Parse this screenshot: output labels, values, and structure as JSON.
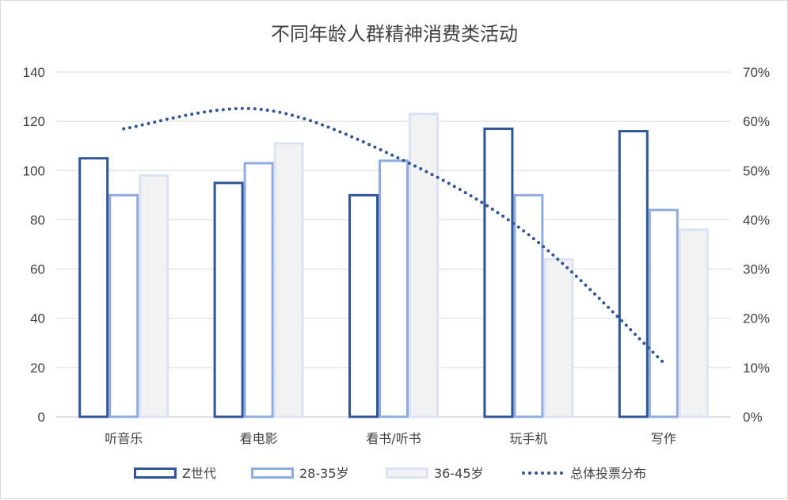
{
  "chart_data": {
    "type": "bar",
    "title": "不同年龄人群精神消费类活动",
    "categories": [
      "听音乐",
      "看电影",
      "看书/听书",
      "玩手机",
      "写作"
    ],
    "series": [
      {
        "name": "Z世代",
        "kind": "bar",
        "axis": "left",
        "color": "#2f5597",
        "fill": "#ffffff",
        "values": [
          105,
          95,
          90,
          117,
          116
        ]
      },
      {
        "name": "28-35岁",
        "kind": "bar",
        "axis": "left",
        "color": "#8faadc",
        "fill": "#ffffff",
        "values": [
          90,
          103,
          104,
          90,
          84
        ]
      },
      {
        "name": "36-45岁",
        "kind": "bar",
        "axis": "left",
        "color": "#dae3f3",
        "fill": "#f2f2f2",
        "values": [
          98,
          111,
          123,
          64,
          76
        ]
      },
      {
        "name": "总体投票分布",
        "kind": "line",
        "style": "dotted",
        "smooth": true,
        "axis": "right",
        "color": "#2f5597",
        "values": [
          0.585,
          0.625,
          0.53,
          0.37,
          0.11
        ]
      }
    ],
    "y_left": {
      "min": 0,
      "max": 140,
      "ticks": [
        0,
        20,
        40,
        60,
        80,
        100,
        120,
        140
      ],
      "tick_labels": [
        "0",
        "20",
        "40",
        "60",
        "80",
        "100",
        "120",
        "140"
      ]
    },
    "y_right": {
      "min": 0,
      "max": 0.7,
      "ticks": [
        0,
        0.1,
        0.2,
        0.3,
        0.4,
        0.5,
        0.6,
        0.7
      ],
      "tick_labels": [
        "0%",
        "10%",
        "20%",
        "30%",
        "40%",
        "50%",
        "60%",
        "70%"
      ]
    },
    "grid": true,
    "legend_position": "bottom"
  }
}
